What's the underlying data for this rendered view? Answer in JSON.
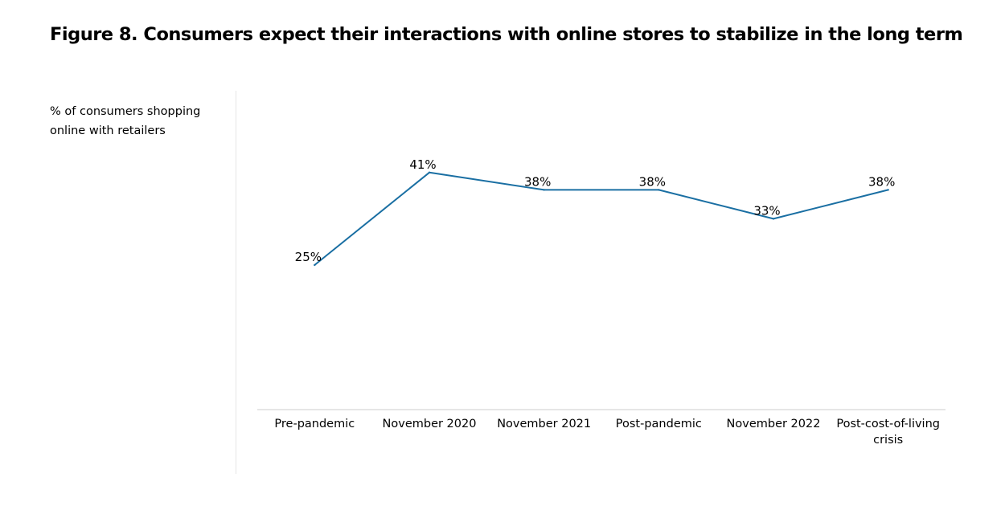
{
  "title": "Figure 8. Consumers expect their interactions with online stores to stabilize in the long term",
  "colors": {
    "line": "#1a6fa3",
    "axis": "#cccccc",
    "divider": "#e5e5e5"
  },
  "chart_data": {
    "type": "line",
    "title": "Figure 8. Consumers expect their interactions with online stores to stabilize in the long term",
    "ylabel": "% of consumers shopping online with retailers",
    "xlabel": "",
    "categories": [
      [
        "Pre-pandemic"
      ],
      [
        "November 2020"
      ],
      [
        "November 2021"
      ],
      [
        "Post-pandemic"
      ],
      [
        "November 2022"
      ],
      [
        "Post-cost-of-living",
        "crisis"
      ]
    ],
    "series": [
      {
        "values": [
          25,
          41,
          38,
          38,
          33,
          38
        ]
      }
    ],
    "data_labels": [
      "25%",
      "41%",
      "38%",
      "38%",
      "33%",
      "38%"
    ],
    "ylim": [
      0,
      100
    ],
    "grid": false,
    "legend": "none"
  }
}
